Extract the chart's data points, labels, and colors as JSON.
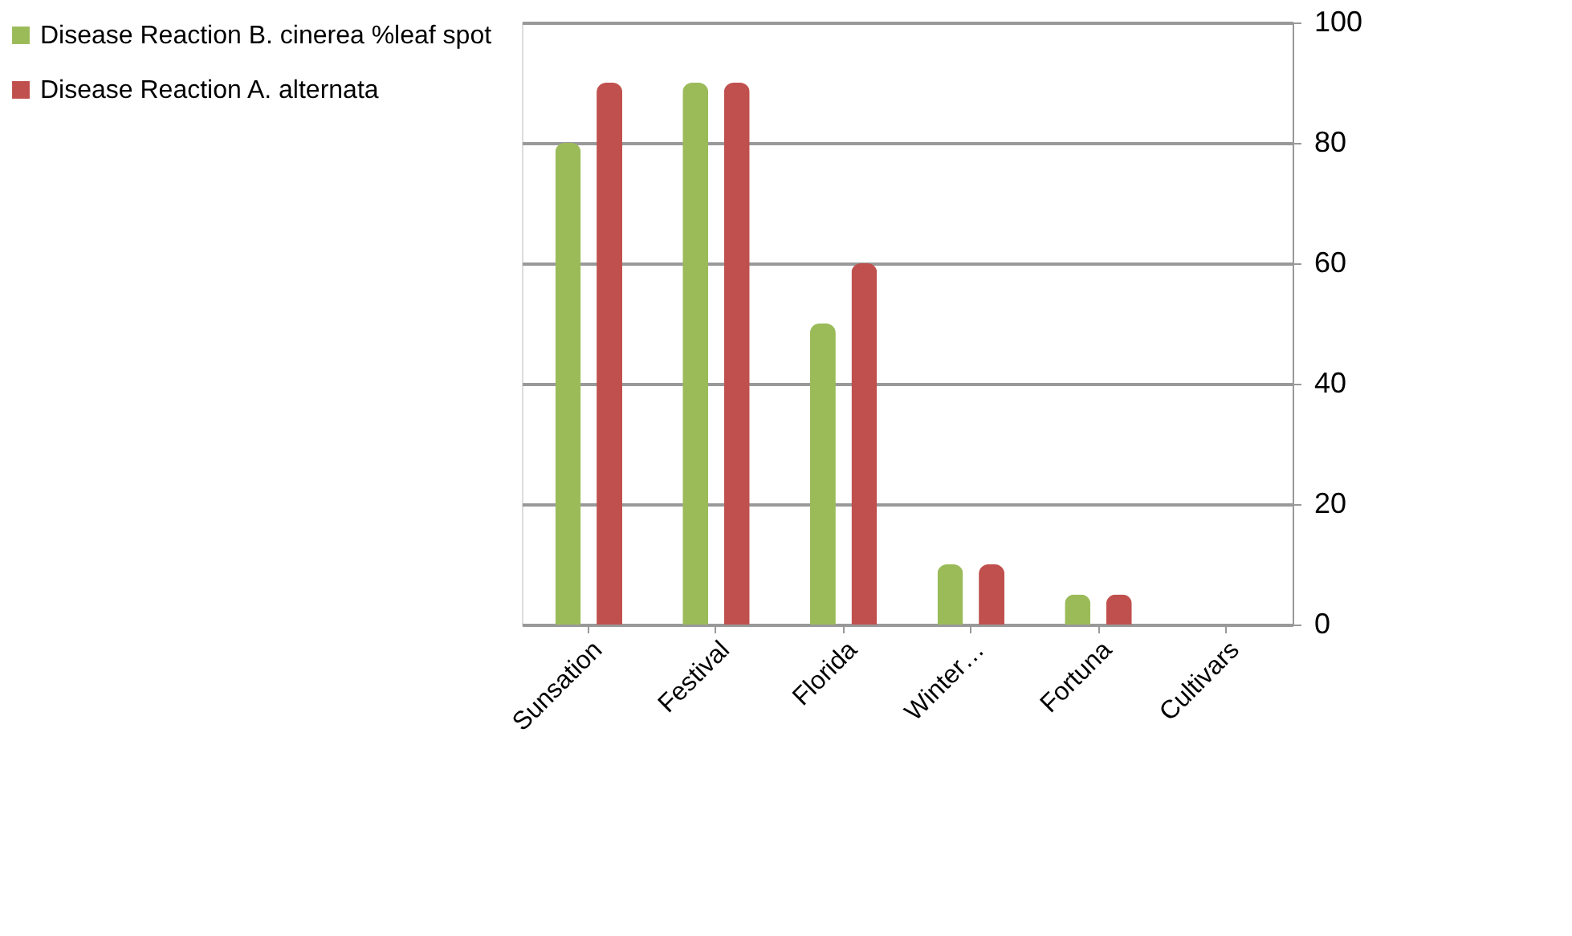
{
  "chart_data": {
    "type": "bar",
    "categories": [
      "Sunsation",
      "Festival",
      "Florida",
      "Winter…",
      "Fortuna",
      "Cultivars"
    ],
    "series": [
      {
        "name": "Disease Reaction B. cinerea %leaf spot",
        "color": "#9bbb59",
        "values": [
          80,
          90,
          50,
          10,
          5,
          null
        ]
      },
      {
        "name": "Disease Reaction A. alternata",
        "color": "#c0504d",
        "values": [
          90,
          90,
          60,
          10,
          5,
          0
        ]
      }
    ],
    "ylim": [
      0,
      100
    ],
    "yticks": [
      0,
      20,
      40,
      60,
      80,
      100
    ],
    "grid": "y",
    "legend": "left"
  }
}
